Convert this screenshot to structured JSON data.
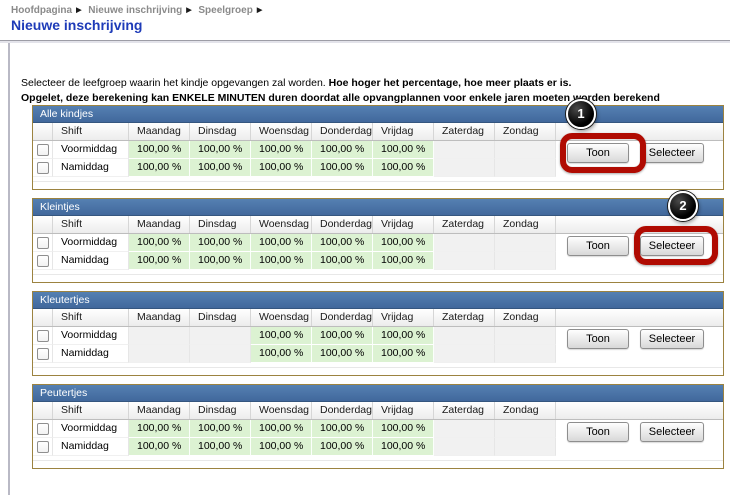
{
  "breadcrumb": {
    "items": [
      "Hoofdpagina",
      "Nieuwe inschrijving",
      "Speelgroep"
    ],
    "separator_icon": "▶"
  },
  "page": {
    "title": "Nieuwe inschrijving"
  },
  "intro": {
    "line1_normal": "Selecteer de leefgroep waarin het kindje opgevangen zal worden. ",
    "line1_bold": "Hoe hoger het percentage, hoe meer plaats er is.",
    "line2_bold": "Opgelet, deze berekening kan ENKELE MINUTEN duren doordat alle opvangplannen voor enkele jaren moeten worden berekend"
  },
  "table": {
    "shift_column_header": "Shift",
    "day_columns": [
      "Maandag",
      "Dinsdag",
      "Woensdag",
      "Donderdag",
      "Vrijdag",
      "Zaterdag",
      "Zondag"
    ],
    "buttons": {
      "toon": "Toon",
      "selecteer": "Selecteer"
    }
  },
  "groups": [
    {
      "name": "Alle kindjes",
      "rows": [
        {
          "shift": "Voormiddag",
          "values": [
            "100,00 %",
            "100,00 %",
            "100,00 %",
            "100,00 %",
            "100,00 %",
            "",
            ""
          ]
        },
        {
          "shift": "Namiddag",
          "values": [
            "100,00 %",
            "100,00 %",
            "100,00 %",
            "100,00 %",
            "100,00 %",
            "",
            ""
          ]
        }
      ],
      "annotation": {
        "number": "1",
        "target": "toon"
      }
    },
    {
      "name": "Kleintjes",
      "rows": [
        {
          "shift": "Voormiddag",
          "values": [
            "100,00 %",
            "100,00 %",
            "100,00 %",
            "100,00 %",
            "100,00 %",
            "",
            ""
          ]
        },
        {
          "shift": "Namiddag",
          "values": [
            "100,00 %",
            "100,00 %",
            "100,00 %",
            "100,00 %",
            "100,00 %",
            "",
            ""
          ]
        }
      ],
      "annotation": {
        "number": "2",
        "target": "selecteer"
      }
    },
    {
      "name": "Kleutertjes",
      "rows": [
        {
          "shift": "Voormiddag",
          "values": [
            "",
            "",
            "100,00 %",
            "100,00 %",
            "100,00 %",
            "",
            ""
          ]
        },
        {
          "shift": "Namiddag",
          "values": [
            "",
            "",
            "100,00 %",
            "100,00 %",
            "100,00 %",
            "",
            ""
          ]
        }
      ],
      "annotation": null
    },
    {
      "name": "Peutertjes",
      "rows": [
        {
          "shift": "Voormiddag",
          "values": [
            "100,00 %",
            "100,00 %",
            "100,00 %",
            "100,00 %",
            "100,00 %",
            "",
            ""
          ]
        },
        {
          "shift": "Namiddag",
          "values": [
            "100,00 %",
            "100,00 %",
            "100,00 %",
            "100,00 %",
            "100,00 %",
            "",
            ""
          ]
        }
      ],
      "annotation": null
    }
  ],
  "colors": {
    "title_blue": "#1e3bb8",
    "group_header_blue": "#4a74a8",
    "group_border_gold": "#9c8340",
    "available_cell_green": "#dcf2d2",
    "annotation_red": "#b00b02",
    "annotation_black": "#000000"
  }
}
